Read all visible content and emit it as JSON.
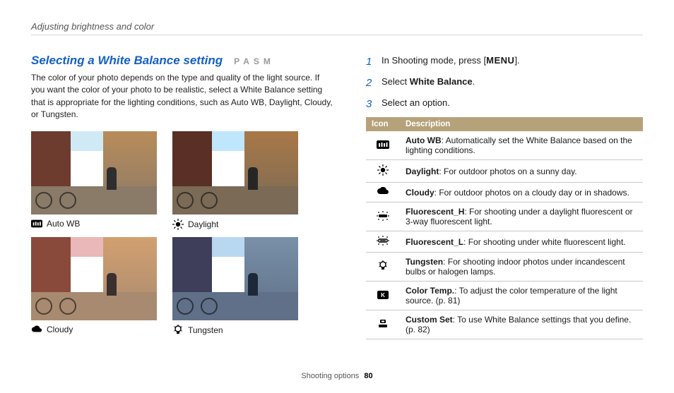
{
  "header": "Adjusting brightness and color",
  "title": "Selecting a White Balance setting",
  "modes": "PASM",
  "intro": "The color of your photo depends on the type and quality of the light source. If you want the color of your photo to be realistic, select a White Balance setting that is appropriate for the lighting conditions, such as Auto WB, Daylight, Cloudy, or Tungsten.",
  "examples": [
    {
      "label": "Auto WB",
      "icon": "awb",
      "tint": {
        "sky": "#cfeaf4",
        "bldgL": "#6e3b2f",
        "bldgR": "#b88c5a",
        "ground": "#8a7a68",
        "person": "#2e2e2e"
      }
    },
    {
      "label": "Daylight",
      "icon": "sun",
      "tint": {
        "sky": "#bfe6fb",
        "bldgL": "#5a2f25",
        "bldgR": "#a87848",
        "ground": "#7a6a56",
        "person": "#262626"
      }
    },
    {
      "label": "Cloudy",
      "icon": "cloud",
      "tint": {
        "sky": "#eab8b8",
        "bldgL": "#8a4a3b",
        "bldgR": "#d2a070",
        "ground": "#a88a70",
        "person": "#3a3030"
      }
    },
    {
      "label": "Tungsten",
      "icon": "bulb",
      "tint": {
        "sky": "#b8d8f2",
        "bldgL": "#3e3e5a",
        "bldgR": "#7890a8",
        "ground": "#607088",
        "person": "#1e2838"
      }
    }
  ],
  "steps": [
    {
      "n": "1",
      "pre": "In Shooting mode, press [",
      "key": "MENU",
      "post": "]."
    },
    {
      "n": "2",
      "pre": "Select ",
      "bold": "White Balance",
      "post": "."
    },
    {
      "n": "3",
      "pre": "Select an option."
    }
  ],
  "table": {
    "cols": [
      "Icon",
      "Description"
    ],
    "rows": [
      {
        "icon": "awb",
        "term": "Auto WB",
        "desc": ": Automatically set the White Balance based on the lighting conditions."
      },
      {
        "icon": "sun",
        "term": "Daylight",
        "desc": ": For outdoor photos on a sunny day."
      },
      {
        "icon": "cloud",
        "term": "Cloudy",
        "desc": ": For outdoor photos on a cloudy day or in shadows."
      },
      {
        "icon": "fluoH",
        "term": "Fluorescent_H",
        "desc": ": For shooting under a daylight fluorescent or 3-way fluorescent light."
      },
      {
        "icon": "fluoL",
        "term": "Fluorescent_L",
        "desc": ": For shooting under white fluorescent light."
      },
      {
        "icon": "bulb",
        "term": "Tungsten",
        "desc": ": For shooting indoor photos under incandescent bulbs or halogen lamps."
      },
      {
        "icon": "k",
        "term": "Color Temp.",
        "desc": ": To adjust the color temperature of the light source. (p. 81)"
      },
      {
        "icon": "custom",
        "term": "Custom Set",
        "desc": ": To use White Balance settings that you define. (p. 82)"
      }
    ]
  },
  "footer": {
    "section": "Shooting options",
    "page": "80"
  },
  "colors": {
    "accent": "#b6a27a",
    "link": "#1560c2"
  }
}
